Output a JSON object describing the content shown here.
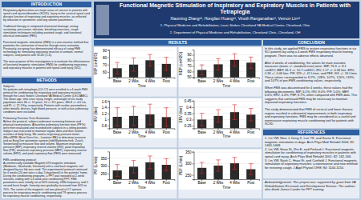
{
  "title": "Functional Magnetic Stimulation of Inspiratory and Expiratory Muscles in Patients with Tetraplegia",
  "subtitle": "Xiaoming Zhang¹², Honglian Huang¹², Vinoth Ranganathan³, Vernon Lin¹²",
  "annotations": [
    "1. Physical Medicine and Rehabilitation, Louis Stokes Cleveland VA Medical Center, Cleveland, Ohio",
    "2. Department of Physical Medicine and Rehabilitation, Cleveland Clinic, Cleveland, OH",
    "INTRODUCTION",
    "Respiratory dysfunctions are major areas of concern in patients with spinal cord injuries/disorders (SCI/D). Injury to the cervical spinal cord disrupts function of inspiratory and expiratory muscles, as reflected by reduction in spirometric and lung volume parameters.\n\nTraditional therapy is composed of postural drainage, airway suctioning, percussion, vibration, breathing exercises, cough stimulation techniques including assisted cough, and functional electrical stimulation (FES).\n\nFunctional magnetic stimulation (FMS) is a non-invasive method that promotes the contraction of muscles through nerve activation. Previously, our group has demonstrated efficacy of using FMS technology for stimulating expiratory muscles in animals, normal subjects, and patients with SCI/D (1-3).\n\nThe main purpose of this investigation is to evaluate the effectiveness of functional magnetic stimulation (FMS) for conditioning inspiratory and expiratory muscles in patients with spinal cord injury (SCI).",
    "METHODS",
    "Subjects:\nSix patients with tetraplegia (C4-C7) were enrolled in a 4-week FMS protocol for conditioning the inspiratory and expiratory muscles through the Louis Stokes Cleveland VA Medical Center (LSCVAMC). The mean age, time since injury, height, and weight of our study population were 46 +/- 11 years, 14 +/- 8.5 years, 180.8 +/- 4.6 cm, and 81 +/- 21.3 Kg, respectively. Patients with cardiac pacemakers, other metallic devices, high blood pressure, or with active pulmonary conditions were excluded.\n\nPulmonary Function Tests Evaluation:\nBefore the protocol, subject underwent screening histories and physical examinations. A baseline pulmonary function tests (PFTs) were then evaluated and recorded with subjects in a sitting position. Subject was instructed to maintain regular diets and their routine activities of daily living. We used a respiratory pressure meter (MicroRPM, Micro Direct Inc., Lewiston ME) to determine pressure and an EasyOne spirometer system (ndd Medizintechnik, Zurich, Switzerland) to measure flow and volume. Maximum inspiratory pressure (MIP), inspiratory reserve volume (IRV), peak inspiratory flow (PIF), maximum expiratory pressure (MEP), expiratory reserve volume (ERV), and peak expiratory flow (PEF) were measured.\n\nFMS conditioning protocol:\nA commercially available Magstim 670 magnetic stimulator (Medtronic, Skovlunde, Denmark) with a cool back magnetic coil designed by our lab was used. The experimental protocol continued for 4 weeks (20 min twice a day, 5 days/week) in the patients' home. During the conditioning programs, a PFT was repeated at 2-week intervals, ending with a 4-week post conditioning PFT. FMS parameters were initially set at 60% intensity, 20Hz frequency, and 2-second burst length. Intensity was gradually increased from 60% to 70%. The center of the magnetic coil was placed at C7 spinous process for inspiratory muscle conditioning and T9 spinous process for expiratory muscle conditioning, respectively.",
    "RESULTS",
    "CONCLUSION",
    "In this study, we applied FMS to restore respiratory functions in six SCI patients by using a 4-week FMS respiratory muscle training program. There was no adverse effects observed.\n\nAfter 4 weeks of conditioning, the values for main outcome measures (mean +/- standard error) were: MIP, 76.3 +/- 8.1 cmH2O; MEP, 81.3 +/- 10.7 cmH2O; IRV, 1.17 +/- 0.34 liter; ERV, 0.36 +/- 0.06 liter; PIF, 323 +/- 41 L/min; and PEF, 301 +/- 26 L/min. These values corresponded to 117%, 128%, 107%, 120%, 119%, and 107% of pre-FMS conditioning values, respectively.\n\nWhen FMS was discontinued for 4 weeks, these values had the following decrements: MIP, 6.5%; IRV, 8.0%; PIF, 5.0%; MEP, 6.6%; ERV, 4.4%; PEF, 8.7%, when compared with FMS data. This suggests that continued FMS may be necessary to maintain improved inspiratory functions.\n\nThe study demonstrated that FMS of cervical and lower thoracic regions resulted in substantial improvements in both inspiratory and expiratory functions. FMS may be considered as a useful and noninvasive respiratory muscle conditioning tool for patients with SCI/D.",
    "REFERENCES",
    "1. Lin VW, Nino J, Deng X, Lee YS, and Sasse S. Functional magnetic stimulation in dogs. Arch Phys Med Rehabil 2004; 81: 1465-1468.\n2. Lin VW, Hsao St, Zhu E, and Perkash I. Functional magnetic stimulation for conditioning of expiratory muscles in patients with spinal cord injury. Arch Phys Med Rehabil 2001; 82: 162-166.\n3. Lin VW, Nash C, Hsao St, and Canfield J. Functional magnetic stimulation of expiratory muscles: a noninvasive and new method for restoring cough. J Appl Physiol 1998; 84: 1144-1150.",
    "Acknowledgement: This project was supported by grant from VA Rehabilitation Research and Development Service. The authors also thank Janice Lander for PFT training."
  ],
  "chart_data": [
    {
      "type": "bar",
      "title": "Figure 1. Changes of maximum inspiratory pressure\n(MIP) throughout the conditioning protocol.",
      "xlabel": "Time",
      "ylabel": "MIP (cmH2O)",
      "categories": [
        "Base",
        "2 Wks",
        "4 Wks",
        "Post"
      ],
      "values": [
        65,
        70,
        76,
        71
      ],
      "errors": [
        8,
        9,
        8,
        9
      ],
      "color": "#2a2a2a",
      "ylim": [
        52.44,
        90.72
      ],
      "yticks": [
        60,
        70,
        80,
        90
      ],
      "grid": true
    },
    {
      "type": "bar",
      "title": "Figure 4. Changes of maximum expiratory pressure\n(MEP) throughout the conditioning protocol.",
      "xlabel": "Time",
      "ylabel": "MEP (cmH2O)",
      "categories": [
        "Base",
        "2 Wks",
        "4 Wks",
        "Post"
      ],
      "values": [
        63,
        73,
        81,
        76
      ],
      "errors": [
        9,
        10,
        11,
        10
      ],
      "color": "#2a2a2a",
      "ylim": [
        49.68,
        99.36
      ],
      "yticks": [
        50,
        60,
        70,
        80,
        90
      ],
      "grid": true
    },
    {
      "type": "bar",
      "title": "Figure 2. Changes of inspiratory reserve volume\n(IRV) throughout the conditioning protocol.",
      "xlabel": "Time",
      "ylabel": "IRV (liter)",
      "categories": [
        "Base",
        "2 Wks",
        "4 Wks",
        "Post"
      ],
      "values": [
        1.09,
        1.12,
        1.17,
        1.08
      ],
      "errors": [
        0.3,
        0.32,
        0.34,
        0.31
      ],
      "color": "#2a2a2a",
      "ylim": [
        0.7084,
        1.6308
      ],
      "yticks": [
        0.8,
        1,
        1.2,
        1.4,
        1.6
      ],
      "grid": true
    },
    {
      "type": "bar",
      "title": "Figure 5. Changes of expiratory reserve volume\n(ERV) throughout the conditioning protocol.",
      "xlabel": "Time",
      "ylabel": "ERV (liter)",
      "categories": [
        "Base",
        "2 Wks",
        "4 Wks",
        "Post"
      ],
      "values": [
        0.3,
        0.33,
        0.36,
        0.34
      ],
      "errors": [
        0.05,
        0.05,
        0.06,
        0.05
      ],
      "color": "#2a2a2a",
      "ylim": [
        0.23,
        0.4536
      ],
      "yticks": [
        0.25,
        0.3,
        0.35,
        0.4,
        0.45
      ],
      "grid": true
    },
    {
      "type": "bar",
      "title": "Figure 3. Changes of peak inspiratory flow (PIF)\nthroughout the conditioning protocol.",
      "xlabel": "Time",
      "ylabel": "PIF (L/min)",
      "categories": [
        "Base",
        "2 Wks",
        "4 Wks",
        "Post"
      ],
      "values": [
        271,
        295,
        323,
        307
      ],
      "errors": [
        38,
        40,
        41,
        39
      ],
      "color": "#2a2a2a",
      "ylim": [
        214.36,
        393.12
      ],
      "yticks": [
        250,
        300,
        350
      ],
      "grid": true
    },
    {
      "type": "bar",
      "title": "Figure 6. Changes of peak expiratory flow (PEF)\nthroughout the conditioning protocol.",
      "xlabel": "Time",
      "ylabel": "PEF (L/min)",
      "categories": [
        "Base",
        "2 Wks",
        "4 Wks",
        "Post"
      ],
      "values": [
        281,
        291,
        301,
        275
      ],
      "errors": [
        24,
        25,
        26,
        24
      ],
      "color": "#2a2a2a",
      "ylim": [
        230.92,
        353.16
      ],
      "yticks": [
        250,
        300,
        350
      ],
      "grid": true
    }
  ]
}
